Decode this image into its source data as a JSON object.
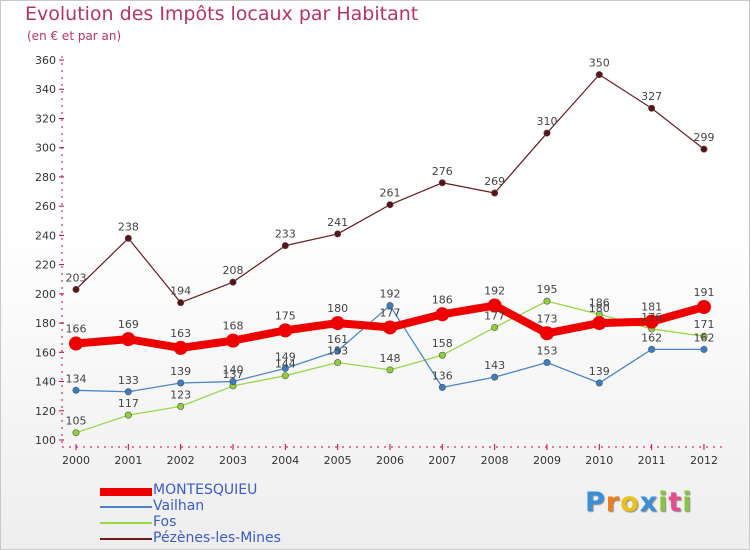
{
  "title": "Evolution des Impôts locaux par Habitant",
  "subtitle": "(en € et par an)",
  "chart_data": {
    "type": "line",
    "title": "Evolution des Impôts locaux par Habitant",
    "ylabel": "(en € et par an)",
    "xlabel": "",
    "ylim": [
      100,
      360
    ],
    "yticks": [
      100,
      120,
      140,
      160,
      180,
      200,
      220,
      240,
      260,
      280,
      300,
      320,
      340,
      360
    ],
    "x": [
      "2000",
      "2001",
      "2002",
      "2003",
      "2004",
      "2005",
      "2006",
      "2007",
      "2008",
      "2009",
      "2010",
      "2011",
      "2012"
    ],
    "series": [
      {
        "name": "Pézènes-les-Mines",
        "color": "#6b1a1f",
        "values": [
          203,
          238,
          194,
          208,
          233,
          241,
          261,
          276,
          269,
          310,
          350,
          327,
          299
        ]
      },
      {
        "name": "Fos",
        "color": "#99d64a",
        "values": [
          105,
          117,
          123,
          137,
          144,
          153,
          148,
          158,
          177,
          195,
          186,
          176,
          171
        ]
      },
      {
        "name": "Vailhan",
        "color": "#4a86c6",
        "values": [
          134,
          133,
          139,
          140,
          149,
          161,
          192,
          136,
          143,
          153,
          139,
          162,
          162
        ]
      },
      {
        "name": "MONTESQUIEU",
        "color": "#ee0000",
        "values": [
          166,
          169,
          163,
          168,
          175,
          180,
          177,
          186,
          192,
          173,
          180,
          181,
          191
        ]
      }
    ],
    "data_labels": {
      "Pézènes-les-Mines": [
        "203",
        "238",
        "194",
        "208",
        "233",
        "241",
        "261",
        "276",
        "269",
        "310",
        "350",
        "327",
        "299"
      ],
      "Fos": [
        "105",
        "117",
        "123",
        "137",
        "144",
        "153",
        "148",
        "158",
        "177",
        "195",
        "186",
        "176",
        "171"
      ],
      "Vailhan": [
        "134",
        "133",
        "139",
        "140",
        "149",
        "161",
        "192",
        "136",
        "143",
        "153",
        "139",
        "162",
        "162"
      ],
      "MONTESQUIEU": [
        "166",
        "169",
        "163",
        "168",
        "175",
        "180",
        "177",
        "186",
        "192",
        "173",
        "180",
        "181",
        "191"
      ]
    },
    "legend": [
      "MONTESQUIEU",
      "Vailhan",
      "Fos",
      "Pézènes-les-Mines"
    ],
    "legend_position": "bottom-left",
    "grid": false
  },
  "logo": {
    "letters": [
      "P",
      "r",
      "o",
      "x",
      "i",
      "t",
      "i"
    ],
    "colors": [
      "#3a8fd6",
      "#f07d1e",
      "#e8c21c",
      "#3a8fd6",
      "#8bc43f",
      "#e84b8a",
      "#8bc43f"
    ]
  },
  "colors": {
    "title": "#b8336a",
    "axis": "#c0004a",
    "legend_text": "#3b5bc9"
  }
}
